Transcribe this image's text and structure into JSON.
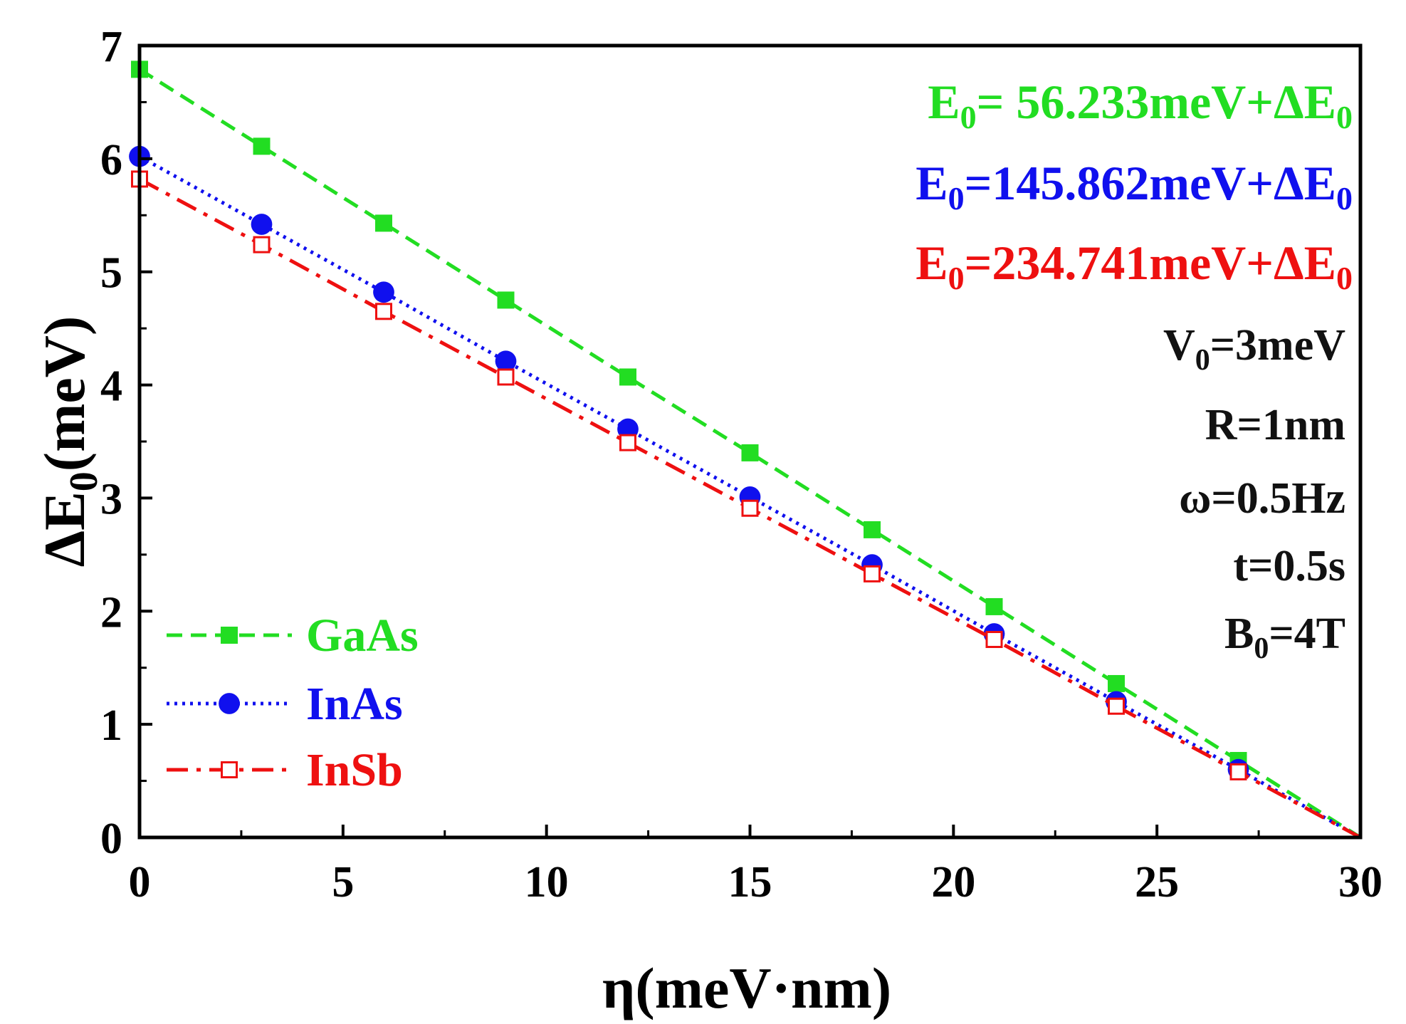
{
  "chart_data": {
    "type": "line",
    "xlabel": "η(meV·nm)",
    "ylabel": "ΔE",
    "ylabel_sub": "0",
    "ylabel_suffix": "(meV)",
    "xlim": [
      0,
      30
    ],
    "ylim": [
      0,
      7
    ],
    "xticks": [
      0,
      5,
      10,
      15,
      20,
      25,
      30
    ],
    "yticks": [
      0,
      1,
      2,
      3,
      4,
      5,
      6,
      7
    ],
    "x": [
      0,
      3,
      6,
      9,
      12,
      15,
      18,
      21,
      24,
      27,
      30
    ],
    "series": [
      {
        "name": "GaAs",
        "color": "#22dd22",
        "line_style": "dashed",
        "marker": "filled-square",
        "values": [
          6.79,
          6.11,
          5.43,
          4.75,
          4.07,
          3.4,
          2.72,
          2.04,
          1.36,
          0.68,
          0.0
        ]
      },
      {
        "name": "InAs",
        "color": "#1010ee",
        "line_style": "dotted",
        "marker": "filled-circle",
        "values": [
          6.02,
          5.42,
          4.82,
          4.21,
          3.61,
          3.01,
          2.41,
          1.8,
          1.2,
          0.6,
          0.0
        ]
      },
      {
        "name": "InSb",
        "color": "#ee1010",
        "line_style": "dash-dot",
        "marker": "open-square",
        "values": [
          5.82,
          5.24,
          4.65,
          4.07,
          3.49,
          2.91,
          2.33,
          1.75,
          1.16,
          0.58,
          0.0
        ]
      }
    ],
    "legend_position": "lower-left",
    "annotations": [
      {
        "prefix": "E",
        "sub": "0",
        "text": "=  56.233meV+ΔE",
        "sub2": "0",
        "color": "#22dd22"
      },
      {
        "prefix": "E",
        "sub": "0",
        "text": "=145.862meV+ΔE",
        "sub2": "0",
        "color": "#1010ee"
      },
      {
        "prefix": "E",
        "sub": "0",
        "text": "=234.741meV+ΔE",
        "sub2": "0",
        "color": "#ee1010"
      },
      {
        "prefix": "V",
        "sub": "0",
        "text": "=3meV",
        "sub2": "",
        "color": "#111111"
      },
      {
        "prefix": "",
        "sub": "",
        "text": "R=1nm",
        "sub2": "",
        "color": "#111111"
      },
      {
        "prefix": "",
        "sub": "",
        "text": "ω=0.5Hz",
        "sub2": "",
        "color": "#111111"
      },
      {
        "prefix": "",
        "sub": "",
        "text": "t=0.5s",
        "sub2": "",
        "color": "#111111"
      },
      {
        "prefix": "B",
        "sub": "0",
        "text": "=4T",
        "sub2": "",
        "color": "#111111"
      }
    ]
  }
}
